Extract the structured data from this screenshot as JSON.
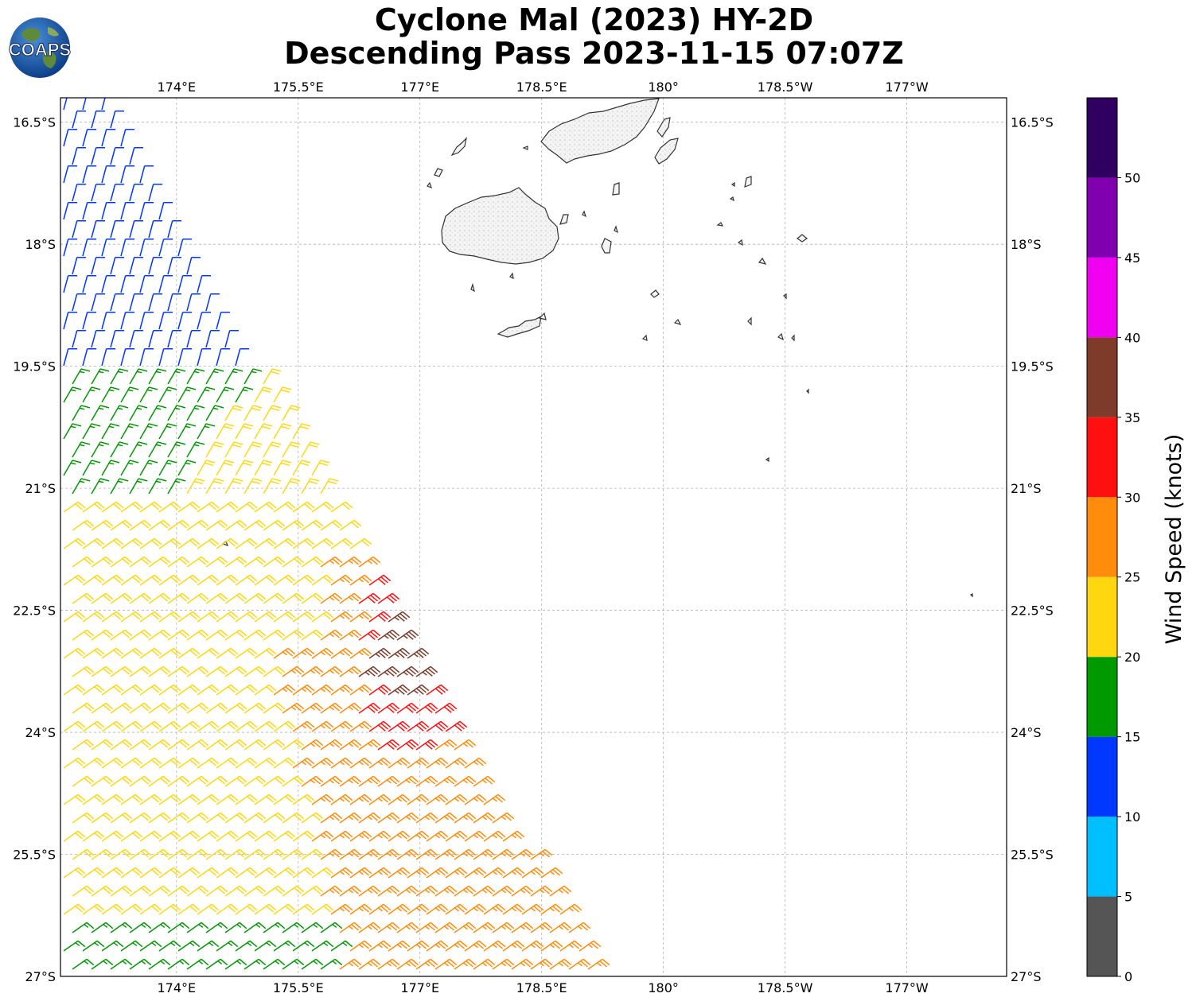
{
  "title": {
    "line1": "Cyclone Mal (2023) HY-2D",
    "line2": "Descending Pass 2023-11-15 07:07Z"
  },
  "logo": {
    "text": "COAPS",
    "icon": "globe-logo-icon"
  },
  "map": {
    "lon_ticks": [
      "174°E",
      "175.5°E",
      "177°E",
      "178.5°E",
      "180°",
      "178.5°W",
      "177°W"
    ],
    "lat_ticks": [
      "16.5°S",
      "18°S",
      "19.5°S",
      "21°S",
      "22.5°S",
      "24°S",
      "25.5°S",
      "27°S"
    ],
    "lon_range": [
      172.57,
      184.23
    ],
    "lat_range": [
      -27.0,
      -16.2
    ],
    "coastline_color": "#333333",
    "land_color": "#f0f0f0",
    "grid": true
  },
  "colorbar": {
    "label": "Wind Speed (knots)",
    "ticks": [
      "0",
      "5",
      "10",
      "15",
      "20",
      "25",
      "30",
      "35",
      "40",
      "45",
      "50"
    ],
    "bins": [
      {
        "min": 0,
        "max": 5,
        "color": "#555555"
      },
      {
        "min": 5,
        "max": 10,
        "color": "#00bfff"
      },
      {
        "min": 10,
        "max": 15,
        "color": "#0038ff"
      },
      {
        "min": 15,
        "max": 20,
        "color": "#009900"
      },
      {
        "min": 20,
        "max": 25,
        "color": "#ffd710"
      },
      {
        "min": 25,
        "max": 30,
        "color": "#ff8c0a"
      },
      {
        "min": 30,
        "max": 35,
        "color": "#ff1010"
      },
      {
        "min": 35,
        "max": 40,
        "color": "#7f3b2a"
      },
      {
        "min": 40,
        "max": 45,
        "color": "#f000f0"
      },
      {
        "min": 45,
        "max": 50,
        "color": "#8000b0"
      },
      {
        "min": 50,
        "max": 55,
        "color": "#300060"
      }
    ]
  }
}
